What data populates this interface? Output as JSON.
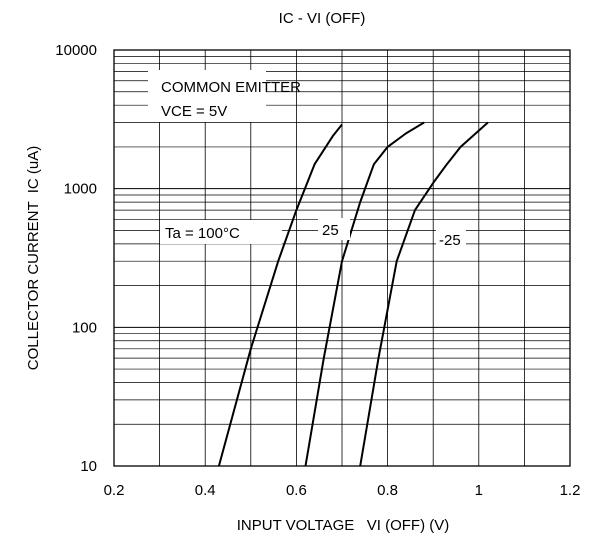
{
  "chart_data": {
    "type": "line",
    "title": "IC - VI (OFF)",
    "xlabel": "INPUT VOLTAGE   VI (OFF) (V)",
    "ylabel": "COLLECTOR CURRENT  IC (uA)",
    "xlim": [
      0.2,
      1.2
    ],
    "ylim": [
      10,
      10000
    ],
    "yscale": "log",
    "grid": true,
    "x_ticks": [
      0.2,
      0.4,
      0.6,
      0.8,
      1,
      1.2
    ],
    "x_tick_labels": [
      "0.2",
      "0.4",
      "0.6",
      "0.8",
      "1",
      "1.2"
    ],
    "y_ticks": [
      10,
      100,
      1000,
      10000
    ],
    "y_tick_labels": [
      "10",
      "100",
      "1000",
      "10000"
    ],
    "annotations": [
      "COMMON EMITTER",
      "VCE = 5V"
    ],
    "series": [
      {
        "name": "Ta = 100°C",
        "x": [
          0.43,
          0.5,
          0.56,
          0.6,
          0.64,
          0.68,
          0.7
        ],
        "y": [
          10,
          70,
          300,
          700,
          1500,
          2400,
          2900
        ]
      },
      {
        "name": "25",
        "x": [
          0.62,
          0.66,
          0.7,
          0.74,
          0.77,
          0.8,
          0.84,
          0.88
        ],
        "y": [
          10,
          60,
          300,
          800,
          1500,
          2000,
          2500,
          3000
        ]
      },
      {
        "name": "-25",
        "x": [
          0.74,
          0.78,
          0.82,
          0.86,
          0.9,
          0.93,
          0.96,
          1.02
        ],
        "y": [
          10,
          60,
          300,
          700,
          1100,
          1500,
          2000,
          3000
        ]
      }
    ]
  }
}
